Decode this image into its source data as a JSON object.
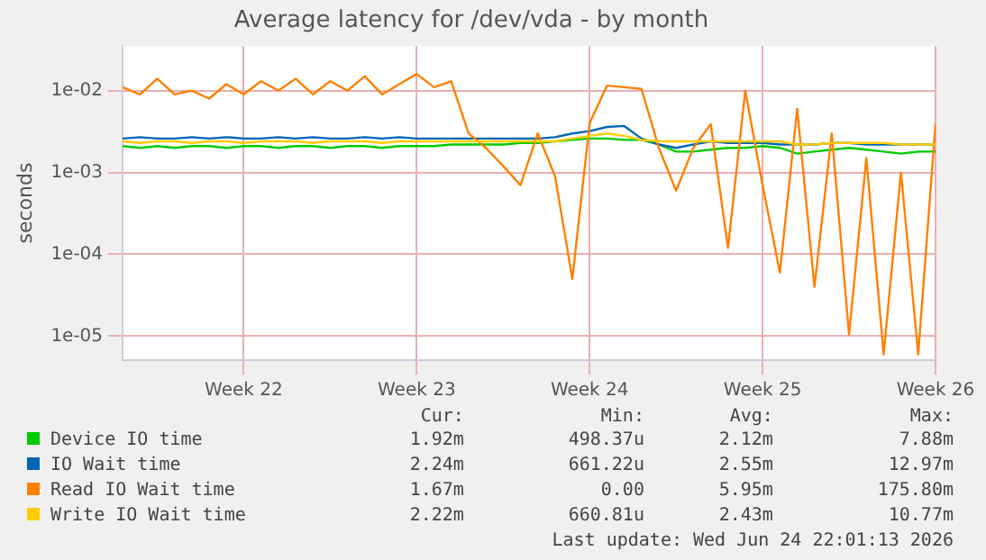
{
  "chart_data": {
    "type": "line",
    "title": "Average latency for /dev/vda - by month",
    "ylabel": "seconds",
    "log": "y",
    "grid": true,
    "legend": "bottom",
    "marker": "none",
    "line_style": "solid",
    "categories": [
      null,
      null,
      null,
      null,
      null,
      null,
      null,
      "Week 22",
      null,
      null,
      null,
      null,
      null,
      null,
      null,
      null,
      null,
      "Week 23",
      null,
      null,
      null,
      null,
      null,
      null,
      null,
      null,
      null,
      "Week 24",
      null,
      null,
      null,
      null,
      null,
      null,
      null,
      null,
      null,
      "Week 25",
      null,
      null,
      null,
      null,
      null,
      null,
      null,
      null,
      null,
      "Week 26"
    ],
    "ylim": [
      5.1e-06,
      0.035
    ],
    "yticks": [
      {
        "value": 1e-05,
        "label": "1e-05"
      },
      {
        "value": 0.0001,
        "label": "1e-04"
      },
      {
        "value": 0.001,
        "label": "1e-03"
      },
      {
        "value": 0.01,
        "label": "1e-02"
      }
    ],
    "series": [
      {
        "name": "Device IO time",
        "color": "#00cc00",
        "values": [
          0.0021,
          0.002,
          0.0021,
          0.002,
          0.0021,
          0.0021,
          0.002,
          0.0021,
          0.0021,
          0.002,
          0.0021,
          0.0021,
          0.002,
          0.0021,
          0.0021,
          0.002,
          0.0021,
          0.0021,
          0.0021,
          0.0022,
          0.0022,
          0.0022,
          0.0022,
          0.0023,
          0.0023,
          0.0024,
          0.0025,
          0.0026,
          0.0026,
          0.0025,
          0.0025,
          0.0022,
          0.0018,
          0.0018,
          0.0019,
          0.002,
          0.002,
          0.0021,
          0.002,
          0.0017,
          0.0018,
          0.0019,
          0.002,
          0.0019,
          0.0018,
          0.0017,
          0.0018,
          0.0018
        ]
      },
      {
        "name": "IO Wait time",
        "color": "#0066b3",
        "values": [
          0.0026,
          0.0027,
          0.0026,
          0.0026,
          0.0027,
          0.0026,
          0.0027,
          0.0026,
          0.0026,
          0.0027,
          0.0026,
          0.0027,
          0.0026,
          0.0026,
          0.0027,
          0.0026,
          0.0027,
          0.0026,
          0.0026,
          0.0026,
          0.0026,
          0.0026,
          0.0026,
          0.0026,
          0.0026,
          0.0027,
          0.003,
          0.0032,
          0.0036,
          0.0037,
          0.0026,
          0.0022,
          0.002,
          0.0022,
          0.0024,
          0.0023,
          0.0023,
          0.0023,
          0.0022,
          0.0022,
          0.0022,
          0.0023,
          0.0023,
          0.0022,
          0.0022,
          0.0022,
          0.0022,
          0.0022
        ]
      },
      {
        "name": "Read IO Wait time",
        "color": "#ff8000",
        "values": [
          0.011,
          0.009,
          0.014,
          0.009,
          0.01,
          0.008,
          0.012,
          0.009,
          0.013,
          0.01,
          0.014,
          0.009,
          0.013,
          0.01,
          0.015,
          0.009,
          0.012,
          0.016,
          0.011,
          0.013,
          0.003,
          0.002,
          0.0012,
          0.0007,
          0.003,
          0.0009,
          5e-05,
          0.004,
          0.0115,
          0.011,
          0.0105,
          0.002,
          0.0006,
          0.002,
          0.0039,
          0.00012,
          0.01,
          0.0007,
          6e-05,
          0.006,
          4e-05,
          0.003,
          1.05e-05,
          0.0015,
          6e-06,
          0.001,
          6e-06,
          0.004
        ]
      },
      {
        "name": "Write IO Wait time",
        "color": "#ffcc00",
        "values": [
          0.0024,
          0.0023,
          0.0024,
          0.0024,
          0.0023,
          0.0024,
          0.0024,
          0.0023,
          0.0024,
          0.0024,
          0.0024,
          0.0023,
          0.0024,
          0.0024,
          0.0024,
          0.0023,
          0.0024,
          0.0024,
          0.0024,
          0.0024,
          0.0024,
          0.0024,
          0.0024,
          0.0024,
          0.0024,
          0.0024,
          0.0026,
          0.0028,
          0.003,
          0.0028,
          0.0025,
          0.0024,
          0.0024,
          0.0024,
          0.0024,
          0.0024,
          0.0024,
          0.0024,
          0.0024,
          0.0022,
          0.0022,
          0.0023,
          0.0023,
          0.0023,
          0.0023,
          0.0022,
          0.0022,
          0.0022
        ]
      }
    ],
    "annotations": [
      "Cur:",
      "Min:",
      "Avg:",
      "Max:",
      "1.92m",
      "498.37u",
      "2.12m",
      "7.88m",
      "2.24m",
      "661.22u",
      "2.55m",
      "12.97m",
      "1.67m",
      "0.00",
      "5.95m",
      "175.80m",
      "2.22m",
      "660.81u",
      "2.43m",
      "10.77m",
      "Last update: Wed Jun 24 22:01:13 2026"
    ]
  }
}
